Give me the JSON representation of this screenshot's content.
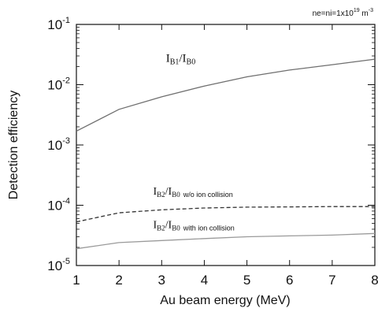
{
  "chart_data": {
    "type": "line",
    "xlabel": "Au beam energy (MeV)",
    "ylabel": "Detection efficiency",
    "xlim": [
      1,
      8
    ],
    "ylim": [
      1e-05,
      0.1
    ],
    "yscale": "log",
    "x_ticks": [
      "1",
      "2",
      "3",
      "4",
      "5",
      "6",
      "7",
      "8"
    ],
    "y_ticks": [
      {
        "base": "10",
        "exp": "-5"
      },
      {
        "base": "10",
        "exp": "-4"
      },
      {
        "base": "10",
        "exp": "-3"
      },
      {
        "base": "10",
        "exp": "-2"
      },
      {
        "base": "10",
        "exp": "-1"
      }
    ],
    "corner_note": {
      "prefix": "ne=ni=1x10",
      "exp": "19",
      "unit": "m",
      "unit_exp": "-3"
    },
    "series": [
      {
        "label_main": "I",
        "label_sub1": "B1",
        "label_mid": "/I",
        "label_sub2": "B0",
        "label_suffix": "",
        "style": "solid",
        "color": "#6f6f6f",
        "x": [
          1,
          2,
          3,
          4,
          5,
          6,
          7,
          8
        ],
        "y": [
          0.0017,
          0.0039,
          0.0063,
          0.0095,
          0.0135,
          0.0175,
          0.0215,
          0.0265
        ]
      },
      {
        "label_main": "I",
        "label_sub1": "B2",
        "label_mid": "/I",
        "label_sub2": "B0",
        "label_suffix": "w/o ion collision",
        "style": "dashed",
        "color": "#333333",
        "x": [
          1,
          2,
          3,
          4,
          5,
          6,
          7,
          8
        ],
        "y": [
          5.3e-05,
          7.5e-05,
          8.4e-05,
          9e-05,
          9.3e-05,
          9.4e-05,
          9.5e-05,
          9.5e-05
        ]
      },
      {
        "label_main": "I",
        "label_sub1": "B2",
        "label_mid": "/I",
        "label_sub2": "B0",
        "label_suffix": "with ion collision",
        "style": "solid",
        "color": "#9a9a9a",
        "x": [
          1,
          2,
          3,
          4,
          5,
          6,
          7,
          8
        ],
        "y": [
          1.9e-05,
          2.4e-05,
          2.6e-05,
          2.8e-05,
          3e-05,
          3.1e-05,
          3.2e-05,
          3.4e-05
        ]
      }
    ]
  }
}
